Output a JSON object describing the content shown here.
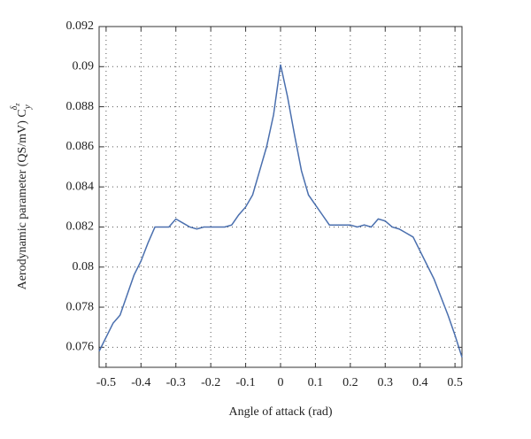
{
  "chart_data": {
    "type": "line",
    "xlabel": "Angle of attack (rad)",
    "ylabel": "Aerodynamic parameter (QS/mV) C",
    "ylabel_sub": "y",
    "ylabel_sup": "δ",
    "ylabel_sup_sub": "z",
    "x": [
      -0.52,
      -0.5,
      -0.48,
      -0.46,
      -0.44,
      -0.42,
      -0.4,
      -0.38,
      -0.36,
      -0.34,
      -0.32,
      -0.3,
      -0.28,
      -0.26,
      -0.24,
      -0.22,
      -0.2,
      -0.18,
      -0.16,
      -0.14,
      -0.12,
      -0.1,
      -0.08,
      -0.06,
      -0.04,
      -0.02,
      0,
      0.02,
      0.04,
      0.06,
      0.08,
      0.1,
      0.12,
      0.14,
      0.16,
      0.18,
      0.2,
      0.22,
      0.24,
      0.26,
      0.28,
      0.3,
      0.32,
      0.34,
      0.36,
      0.38,
      0.4,
      0.42,
      0.44,
      0.46,
      0.48,
      0.5,
      0.52
    ],
    "series": [
      {
        "color": "#4a6fae",
        "values": [
          0.0758,
          0.0765,
          0.0772,
          0.0776,
          0.0786,
          0.0796,
          0.0803,
          0.0812,
          0.082,
          0.082,
          0.082,
          0.0824,
          0.0822,
          0.082,
          0.0819,
          0.082,
          0.082,
          0.082,
          0.082,
          0.0821,
          0.0826,
          0.083,
          0.0836,
          0.0848,
          0.086,
          0.0876,
          0.0901,
          0.0885,
          0.0866,
          0.0848,
          0.0836,
          0.0831,
          0.0826,
          0.0821,
          0.0821,
          0.0821,
          0.0821,
          0.082,
          0.0821,
          0.082,
          0.0824,
          0.0823,
          0.082,
          0.0819,
          0.0817,
          0.0815,
          0.0808,
          0.0801,
          0.0794,
          0.0785,
          0.0776,
          0.0766,
          0.0755
        ]
      }
    ],
    "xlim": [
      -0.52,
      0.52
    ],
    "xticks": [
      -0.5,
      -0.4,
      -0.3,
      -0.2,
      -0.1,
      0,
      0.1,
      0.2,
      0.3,
      0.4,
      0.5
    ],
    "ylim": [
      0.075,
      0.092
    ],
    "yticks": [
      0.076,
      0.078,
      0.08,
      0.082,
      0.084,
      0.086,
      0.088,
      0.09,
      0.092
    ],
    "grid": true
  }
}
